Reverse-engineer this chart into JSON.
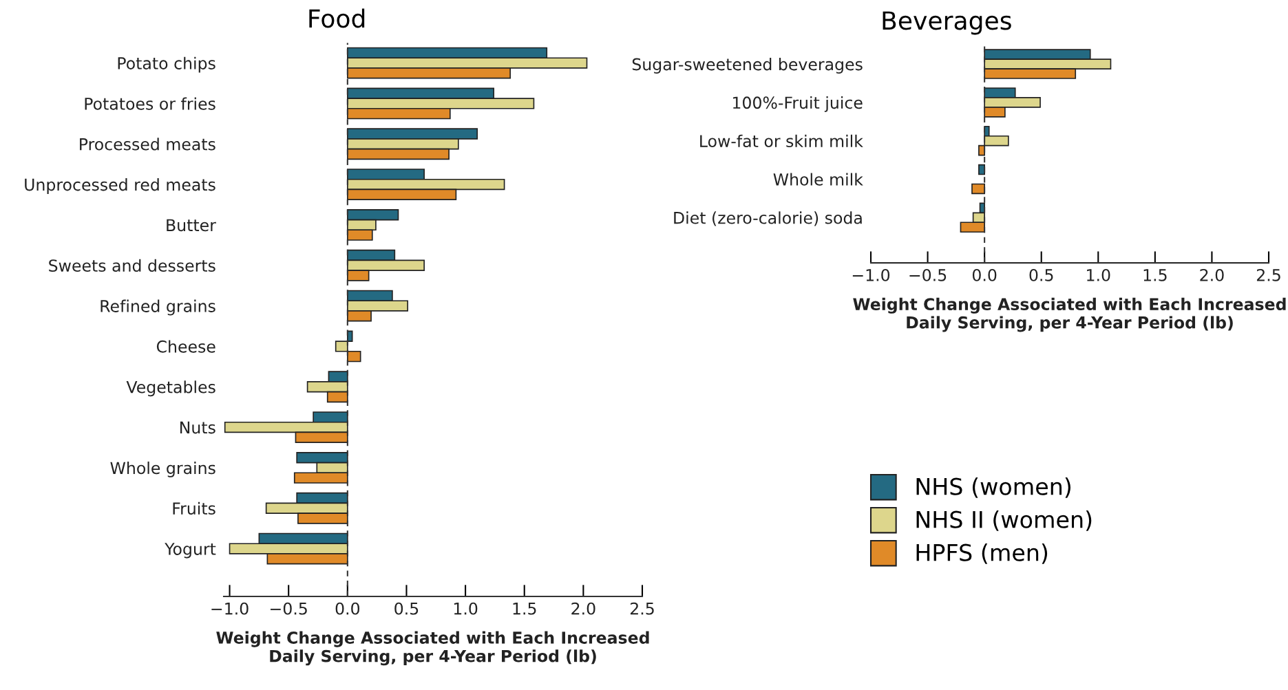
{
  "chart_data": [
    {
      "type": "bar",
      "orientation": "horizontal",
      "title": "Food",
      "xlabel": "Weight Change Associated with Each Increased\nDaily Serving, per 4-Year Period (lb)",
      "categories": [
        "Potato chips",
        "Potatoes or fries",
        "Processed meats",
        "Unprocessed red meats",
        "Butter",
        "Sweets and desserts",
        "Refined grains",
        "Cheese",
        "Vegetables",
        "Nuts",
        "Whole grains",
        "Fruits",
        "Yogurt"
      ],
      "series": [
        {
          "color": "#246a82",
          "values": [
            1.69,
            1.24,
            1.1,
            0.65,
            0.43,
            0.4,
            0.38,
            0.04,
            -0.16,
            -0.29,
            -0.43,
            -0.43,
            -0.75
          ]
        },
        {
          "color": "#ddd68c",
          "values": [
            2.03,
            1.58,
            0.94,
            1.33,
            0.24,
            0.65,
            0.51,
            -0.1,
            -0.34,
            -1.04,
            -0.26,
            -0.69,
            -1.0
          ]
        },
        {
          "color": "#e08a28",
          "values": [
            1.38,
            0.87,
            0.86,
            0.92,
            0.21,
            0.18,
            0.2,
            0.11,
            -0.17,
            -0.44,
            -0.45,
            -0.42,
            -0.68
          ]
        }
      ],
      "xlim": [
        -1.05,
        2.5
      ],
      "xticks": [
        {
          "value": -1.0,
          "label": "−1.0"
        },
        {
          "value": -0.5,
          "label": "−0.5"
        },
        {
          "value": 0.0,
          "label": "0.0"
        },
        {
          "value": 0.5,
          "label": "0.5"
        },
        {
          "value": 1.0,
          "label": "1.0"
        },
        {
          "value": 1.5,
          "label": "1.5"
        },
        {
          "value": 2.0,
          "label": "2.0"
        },
        {
          "value": 2.5,
          "label": "2.5"
        }
      ],
      "ref_lines": [
        {
          "axis": "x",
          "value": 0,
          "color": "#333333",
          "line_style": "dashed"
        }
      ],
      "grid": false,
      "legend": false
    },
    {
      "type": "bar",
      "orientation": "horizontal",
      "title": "Beverages",
      "xlabel": "Weight Change Associated with Each Increased\nDaily Serving, per 4-Year Period (lb)",
      "categories": [
        "Sugar-sweetened beverages",
        "100%-Fruit juice",
        "Low-fat or skim milk",
        "Whole milk",
        "Diet (zero-calorie) soda"
      ],
      "series": [
        {
          "name": "NHS (women)",
          "color": "#246a82",
          "values": [
            0.93,
            0.27,
            0.04,
            -0.05,
            -0.04
          ]
        },
        {
          "name": "NHS II (women)",
          "color": "#ddd68c",
          "values": [
            1.11,
            0.49,
            0.21,
            null,
            -0.1
          ]
        },
        {
          "name": "HPFS (men)",
          "color": "#e08a28",
          "values": [
            0.8,
            0.18,
            -0.05,
            -0.11,
            -0.21
          ]
        }
      ],
      "xlim": [
        -1.0,
        2.5
      ],
      "xticks": [
        {
          "value": -1.0,
          "label": "−1.0"
        },
        {
          "value": -0.5,
          "label": "−0.5"
        },
        {
          "value": 0.0,
          "label": "0.0"
        },
        {
          "value": 0.5,
          "label": "0.5"
        },
        {
          "value": 1.0,
          "label": "1.0"
        },
        {
          "value": 1.5,
          "label": "1.5"
        },
        {
          "value": 2.0,
          "label": "2.0"
        },
        {
          "value": 2.5,
          "label": "2.5"
        }
      ],
      "ref_lines": [
        {
          "axis": "x",
          "value": 0,
          "color": "#333333",
          "line_style": "dashed"
        }
      ],
      "grid": false,
      "legend": "bottom"
    }
  ]
}
